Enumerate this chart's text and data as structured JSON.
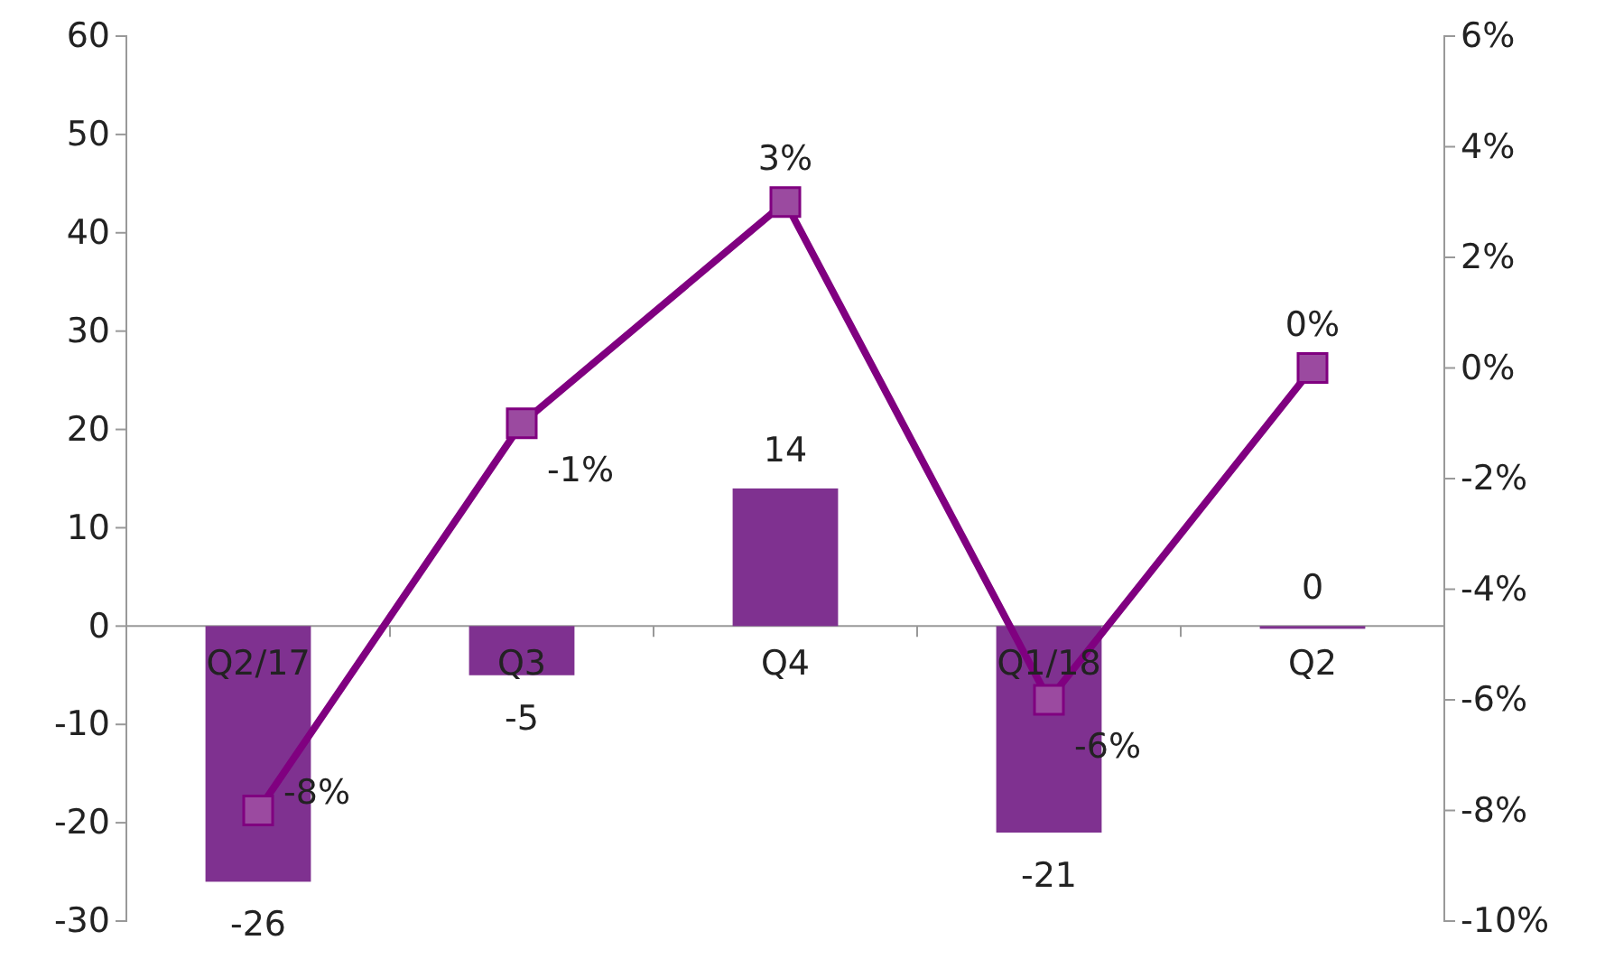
{
  "chart_data": {
    "type": "bar",
    "categories": [
      "Q2/17",
      "Q3",
      "Q4",
      "Q1/18",
      "Q2"
    ],
    "series": [
      {
        "color": "#7f3190",
        "values": [
          -26,
          -5,
          14,
          -21,
          0
        ]
      },
      {
        "type": "line",
        "axis": "y2",
        "color": "#800080",
        "values": [
          -8,
          -1,
          3,
          -6,
          0
        ],
        "value_labels": [
          "-8%",
          "-1%",
          "3%",
          "-6%",
          "0%"
        ]
      }
    ],
    "ylim": [
      -30,
      60
    ],
    "yticks": [
      -30,
      -20,
      -10,
      0,
      10,
      20,
      30,
      40,
      50,
      60
    ],
    "y2lim": [
      -10,
      6
    ],
    "y2ticks": [
      {
        "value": -10,
        "label": "-10%"
      },
      {
        "value": -8,
        "label": "-8%"
      },
      {
        "value": -6,
        "label": "-6%"
      },
      {
        "value": -4,
        "label": "-4%"
      },
      {
        "value": -2,
        "label": "-2%"
      },
      {
        "value": 0,
        "label": "0%"
      },
      {
        "value": 2,
        "label": "2%"
      },
      {
        "value": 4,
        "label": "4%"
      },
      {
        "value": 6,
        "label": "6%"
      }
    ],
    "data_labels": true,
    "marker": "square",
    "grid": false
  }
}
